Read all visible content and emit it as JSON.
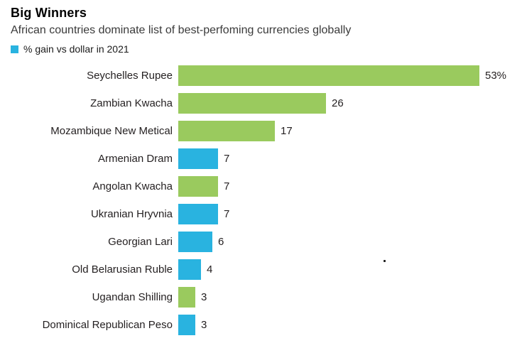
{
  "header": {
    "title": "Big Winners",
    "subtitle": "African countries dominate list of best-perfoming currencies globally"
  },
  "legend": {
    "label": "% gain vs dollar in 2021",
    "swatch_color": "#29b3e0",
    "swatch_icon": "legend-square"
  },
  "colors": {
    "green": "#9aca5e",
    "blue": "#29b3e0",
    "text": "#231f20"
  },
  "chart_data": {
    "type": "bar",
    "orientation": "horizontal",
    "title": "Big Winners",
    "subtitle": "African countries dominate list of best-perfoming currencies globally",
    "legend_entries": [
      "% gain vs dollar in 2021"
    ],
    "xlabel": "",
    "ylabel": "",
    "xlim": [
      0,
      56
    ],
    "grid": false,
    "categories": [
      "Seychelles Rupee",
      "Zambian Kwacha",
      "Mozambique New Metical",
      "Armenian Dram",
      "Angolan Kwacha",
      "Ukranian Hryvnia",
      "Georgian Lari",
      "Old Belarusian Ruble",
      "Ugandan Shilling",
      "Dominical Republican Peso"
    ],
    "values": [
      53,
      26,
      17,
      7,
      7,
      7,
      6,
      4,
      3,
      3
    ],
    "value_labels": [
      "53%",
      "26",
      "17",
      "7",
      "7",
      "7",
      "6",
      "4",
      "3",
      "3"
    ],
    "bar_colors": [
      "#9aca5e",
      "#9aca5e",
      "#9aca5e",
      "#29b3e0",
      "#9aca5e",
      "#29b3e0",
      "#29b3e0",
      "#29b3e0",
      "#9aca5e",
      "#29b3e0"
    ]
  }
}
